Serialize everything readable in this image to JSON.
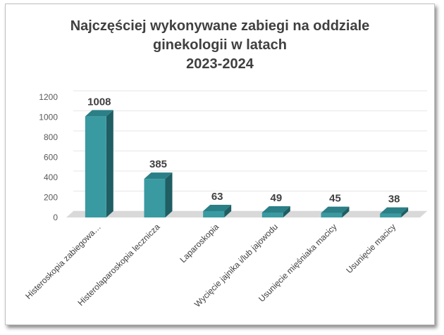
{
  "chart_data": {
    "type": "bar",
    "title_lines": [
      "Najczęściej wykonywane zabiegi na oddziale",
      "ginekologii w latach",
      "2023-2024"
    ],
    "categories": [
      "Histeroskopia zabiegowa…",
      "Histerolaparoskopia lecznicza",
      "Laparoskopia",
      "Wycięcie jajnika i/lub jajowodu",
      "Usunięcie mięśniaka macicy",
      "Usunięcie macicy"
    ],
    "values": [
      1008,
      385,
      63,
      49,
      45,
      38
    ],
    "data_labels": [
      "1008",
      "385",
      "63",
      "49",
      "45",
      "38"
    ],
    "yticks": [
      0,
      200,
      400,
      600,
      800,
      1000,
      1200
    ],
    "ylim": [
      0,
      1200
    ],
    "grid": true,
    "legend": "none",
    "colors": {
      "front": "#3a9aa1",
      "top": "#2b7f86",
      "side": "#1f5e63",
      "floor": "#d9d9d9",
      "grid": "#e6e6e6"
    }
  }
}
